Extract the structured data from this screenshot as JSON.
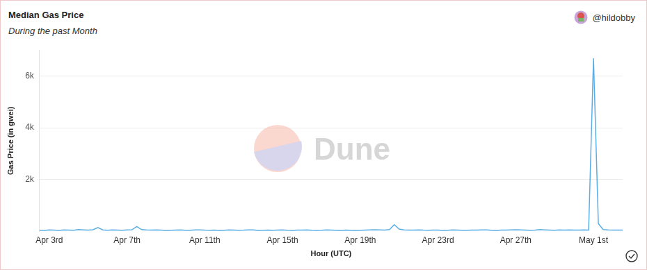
{
  "chart_data": {
    "type": "line",
    "title": "Median Gas Price",
    "subtitle": "During the past Month",
    "author": "@hildobby",
    "watermark": "Dune",
    "x_label": "Hour (UTC)",
    "y_label": "Gas Price (in gwei)",
    "categories": [
      null,
      null,
      "Apr 3rd",
      null,
      null,
      null,
      null,
      null,
      null,
      null,
      null,
      null,
      null,
      null,
      null,
      null,
      null,
      null,
      "Apr 7th",
      null,
      null,
      null,
      null,
      null,
      null,
      null,
      null,
      null,
      null,
      null,
      null,
      null,
      null,
      null,
      "Apr 11th",
      null,
      null,
      null,
      null,
      null,
      null,
      null,
      null,
      null,
      null,
      null,
      null,
      null,
      null,
      null,
      "Apr 15th",
      null,
      null,
      null,
      null,
      null,
      null,
      null,
      null,
      null,
      null,
      null,
      null,
      null,
      null,
      null,
      "Apr 19th",
      null,
      null,
      null,
      null,
      null,
      null,
      null,
      null,
      null,
      null,
      null,
      null,
      null,
      null,
      null,
      "Apr 23rd",
      null,
      null,
      null,
      null,
      null,
      null,
      null,
      null,
      null,
      null,
      null,
      null,
      null,
      null,
      null,
      "Apr 27th",
      null,
      null,
      null,
      null,
      null,
      null,
      null,
      null,
      null,
      null,
      null,
      null,
      null,
      null,
      null,
      "May 1st",
      null,
      null,
      null,
      null,
      null,
      null
    ],
    "values": [
      45,
      40,
      55,
      50,
      38,
      60,
      52,
      44,
      70,
      58,
      48,
      65,
      150,
      60,
      45,
      55,
      50,
      42,
      58,
      62,
      190,
      70,
      55,
      48,
      60,
      52,
      40,
      45,
      50,
      58,
      46,
      42,
      55,
      60,
      48,
      44,
      52,
      38,
      45,
      56,
      50,
      42,
      48,
      60,
      55,
      40,
      46,
      52,
      44,
      50,
      58,
      45,
      40,
      52,
      48,
      55,
      42,
      38,
      46,
      60,
      50,
      44,
      40,
      48,
      42,
      36,
      44,
      50,
      58,
      62,
      55,
      48,
      70,
      260,
      90,
      55,
      48,
      52,
      60,
      50,
      45,
      52,
      48,
      40,
      46,
      55,
      50,
      44,
      42,
      48,
      52,
      60,
      55,
      46,
      40,
      48,
      50,
      58,
      62,
      55,
      48,
      44,
      52,
      70,
      58,
      50,
      46,
      55,
      48,
      60,
      52,
      48,
      55,
      50,
      6680,
      300,
      70,
      55,
      48,
      52,
      50
    ],
    "color": "#5aaee6",
    "ylim": [
      0,
      7000
    ],
    "yticks": [
      {
        "value": 2000,
        "label": "2k"
      },
      {
        "value": 4000,
        "label": "4k"
      },
      {
        "value": 6000,
        "label": "6k"
      }
    ],
    "grid": true
  }
}
